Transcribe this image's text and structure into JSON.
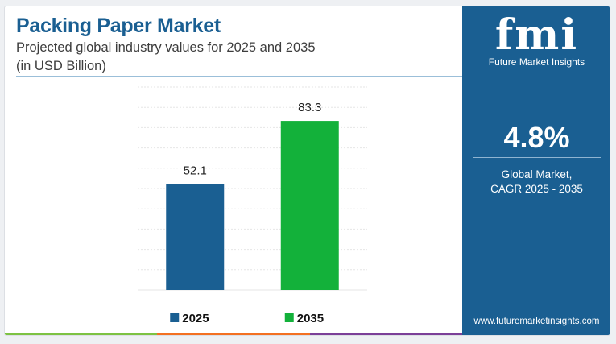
{
  "title": "Packing Paper Market",
  "subtitle_line1": "Projected global industry values for 2025 and 2035",
  "subtitle_line2": "(in USD Billion)",
  "brand": {
    "logo_mark": "fmi",
    "logo_text": "Future Market Insights",
    "website": "www.futuremarketinsights.com"
  },
  "cagr": {
    "value": "4.8%",
    "label_line1": "Global Market,",
    "label_line2": "CAGR 2025 - 2035"
  },
  "colors": {
    "brand_blue": "#1a5f92",
    "bar_2025": "#1a5f92",
    "bar_2035": "#13b13a",
    "footer_green": "#7dc242",
    "footer_orange": "#f37021",
    "footer_purple": "#7b3f98"
  },
  "chart_data": {
    "type": "bar",
    "title": "Packing Paper Market",
    "xlabel": "",
    "ylabel": "",
    "categories": [
      "2025",
      "2035"
    ],
    "values": [
      52.1,
      83.3
    ],
    "data_labels": [
      "52.1",
      "83.3"
    ],
    "series": [
      {
        "name": "2025",
        "values": [
          52.1,
          null
        ],
        "color": "#1a5f92"
      },
      {
        "name": "2035",
        "values": [
          null,
          83.3
        ],
        "color": "#13b13a"
      }
    ],
    "ylim": [
      0,
      100
    ],
    "grid": true,
    "legend": "bottom",
    "legend_items": [
      {
        "label": "2025",
        "color": "#1a5f92"
      },
      {
        "label": "2035",
        "color": "#13b13a"
      }
    ]
  }
}
